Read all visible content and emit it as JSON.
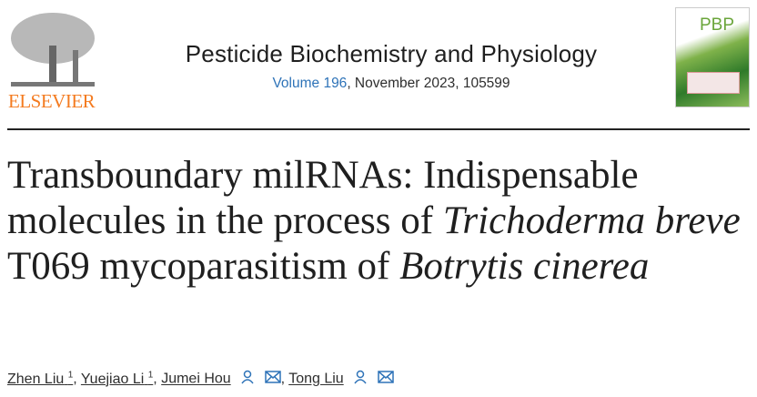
{
  "publisher": {
    "logo_text": "ELSEVIER"
  },
  "journal": {
    "title": "Pesticide Biochemistry and Physiology",
    "volume_link": "Volume 196",
    "issue_info": ", November 2023, 105599",
    "cover_text": "PBP"
  },
  "article": {
    "title_parts": [
      "Transboundary milRNAs: Indispensable molecules in the process of ",
      "Trichoderma breve",
      " T069 mycoparasitism of ",
      "Botrytis cinerea"
    ]
  },
  "authors": [
    {
      "name": "Zhen Liu",
      "sup": "1"
    },
    {
      "name": "Yuejiao Li",
      "sup": "1"
    },
    {
      "name": "Jumei Hou",
      "icons": [
        "person-icon",
        "email-icon"
      ]
    },
    {
      "name": "Tong Liu",
      "icons": [
        "person-icon",
        "email-icon"
      ]
    }
  ],
  "colors": {
    "accent": "#2e73b8",
    "publisher": "#f47b20"
  }
}
